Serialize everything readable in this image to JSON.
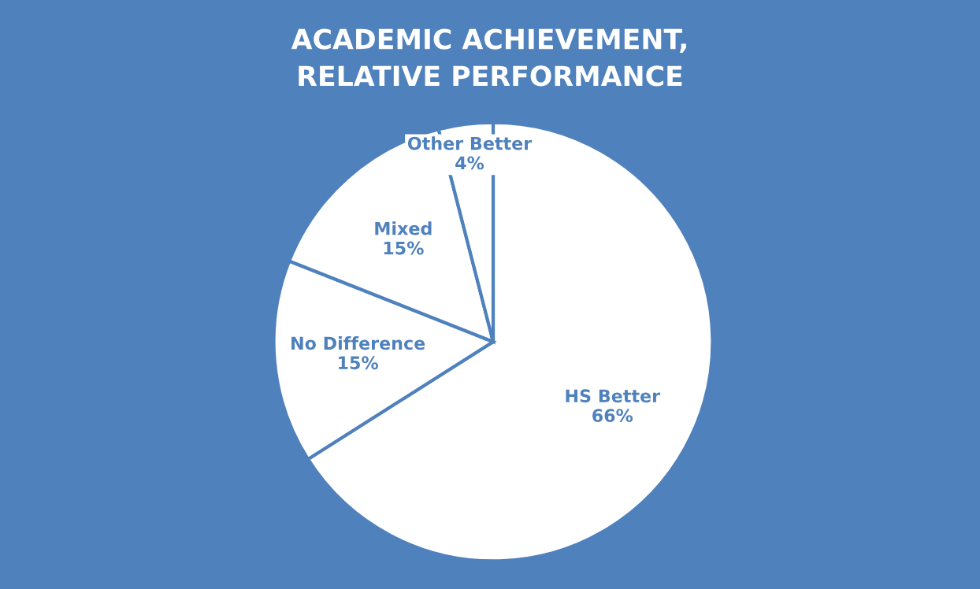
{
  "chart_data": {
    "type": "pie",
    "title": "ACADEMIC ACHIEVEMENT,\nRELATIVE PERFORMANCE",
    "categories": [
      "HS Better",
      "No Difference",
      "Mixed",
      "Other Better"
    ],
    "values": [
      66,
      15,
      15,
      4
    ],
    "colors": [
      "#ffffff",
      "#ffffff",
      "#ffffff",
      "#ffffff"
    ],
    "value_labels": [
      "66%",
      "15%",
      "15%",
      "4%"
    ],
    "legend": false
  }
}
